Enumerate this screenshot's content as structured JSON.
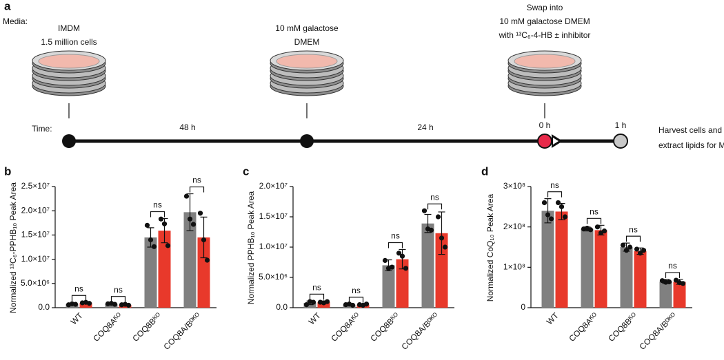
{
  "panel_a": {
    "label": "a",
    "media_label": "Media:",
    "time_label": "Time:",
    "stages": [
      {
        "media": [
          "IMDM",
          "1.5 million cells"
        ]
      },
      {
        "media": [
          "10 mM galactose",
          "DMEM"
        ]
      },
      {
        "media": [
          "Swap into",
          "10 mM galactose DMEM",
          "with ¹³C₆-4-HB ± inhibitor"
        ]
      }
    ],
    "intervals": [
      "48 h",
      "24 h"
    ],
    "time_points": [
      "0 h",
      "1 h"
    ],
    "end_note": [
      "Harvest cells and",
      "extract lipids for MS"
    ]
  },
  "chart_data": [
    {
      "type": "bar",
      "panel": "b",
      "y_label": "Normalized ¹³C₆-PPHB₁₀ Peak Area",
      "categories": [
        "WT",
        "COQ8Aᴷᴼ",
        "COQ8Bᴷᴼ",
        "COQ8A/Bᴰᴷᴼ"
      ],
      "ylim": [
        0,
        25000000.0
      ],
      "yticks": [
        {
          "value": 0,
          "label": "0.0"
        },
        {
          "value": 5000000.0,
          "label": "5.0×10⁶"
        },
        {
          "value": 10000000.0,
          "label": "1.0×10⁷"
        },
        {
          "value": 15000000.0,
          "label": "1.5×10⁷"
        },
        {
          "value": 20000000.0,
          "label": "2.0×10⁷"
        },
        {
          "value": 25000000.0,
          "label": "2.5×10⁷"
        }
      ],
      "series": [
        {
          "color": "#808080",
          "values": [
            700000.0,
            800000.0,
            14500000.0,
            19700000.0
          ],
          "errors": [
            100000.0,
            100000.0,
            2000000.0,
            3800000.0
          ],
          "points": [
            [
              600000.0,
              800000.0,
              700000.0
            ],
            [
              800000.0,
              900000.0,
              700000.0
            ],
            [
              17000000.0,
              14000000.0,
              12600000.0
            ],
            [
              23000000.0,
              18300000.0,
              17200000.0
            ]
          ]
        },
        {
          "color": "#e8392b",
          "values": [
            1000000.0,
            600000.0,
            15900000.0,
            14500000.0
          ],
          "errors": [
            100000.0,
            100000.0,
            2500000.0,
            4200000.0
          ],
          "points": [
            [
              1000000.0,
              1100000.0,
              900000.0
            ],
            [
              600000.0,
              700000.0,
              500000.0
            ],
            [
              18300000.0,
              17300000.0,
              12800000.0
            ],
            [
              19500000.0,
              14000000.0,
              9800000.0
            ]
          ]
        }
      ],
      "annotations": [
        "ns",
        "ns",
        "ns",
        "ns"
      ]
    },
    {
      "type": "bar",
      "panel": "c",
      "y_label": "Normalized PPHB₁₀ Peak Area",
      "categories": [
        "WT",
        "COQ8Aᴷᴼ",
        "COQ8Bᴷᴼ",
        "COQ8A/Bᴰᴷᴼ"
      ],
      "ylim": [
        0,
        20000000.0
      ],
      "yticks": [
        {
          "value": 0,
          "label": "0.0"
        },
        {
          "value": 5000000.0,
          "label": "5.0×10⁶"
        },
        {
          "value": 10000000.0,
          "label": "1.0×10⁷"
        },
        {
          "value": 15000000.0,
          "label": "1.5×10⁷"
        },
        {
          "value": 20000000.0,
          "label": "2.0×10⁷"
        }
      ],
      "series": [
        {
          "color": "#808080",
          "values": [
            800000.0,
            500000.0,
            7000000.0,
            13900000.0
          ],
          "errors": [
            300000.0,
            100000.0,
            900000.0,
            1500000.0
          ],
          "points": [
            [
              500000.0,
              1000000.0,
              900000.0
            ],
            [
              500000.0,
              600000.0,
              400000.0
            ],
            [
              7800000.0,
              6500000.0,
              6700000.0
            ],
            [
              16000000.0,
              13000000.0,
              12800000.0
            ]
          ]
        },
        {
          "color": "#e8392b",
          "values": [
            900000.0,
            500000.0,
            8000000.0,
            12300000.0
          ],
          "errors": [
            200000.0,
            100000.0,
            1600000.0,
            3500000.0
          ],
          "points": [
            [
              900000.0,
              800000.0,
              1000000.0
            ],
            [
              500000.0,
              400000.0,
              600000.0
            ],
            [
              9000000.0,
              8500000.0,
              6500000.0
            ],
            [
              15000000.0,
              11500000.0,
              10000000.0
            ]
          ]
        }
      ],
      "annotations": [
        "ns",
        "ns",
        "ns",
        "ns"
      ]
    },
    {
      "type": "bar",
      "panel": "d",
      "y_label": "Normalized CoQ₁₀ Peak Area",
      "categories": [
        "WT",
        "COQ8Aᴷᴼ",
        "COQ8Bᴷᴼ",
        "COQ8A/Bᴰᴷᴼ"
      ],
      "ylim": [
        0,
        300000000.0
      ],
      "yticks": [
        0,
        {
          "value": 100000000.0,
          "label": "1×10⁸"
        },
        {
          "value": 200000000.0,
          "label": "2×10⁸"
        },
        {
          "value": 300000000.0,
          "label": "3×10⁸"
        }
      ],
      "series": [
        {
          "color": "#808080",
          "values": [
            240000000.0,
            195000000.0,
            150000000.0,
            65000000.0
          ],
          "errors": [
            30000000.0,
            5000000.0,
            10000000.0,
            5000000.0
          ],
          "points": [
            [
              260000000.0,
              230000000.0,
              220000000.0
            ],
            [
              195000000.0,
              197000000.0,
              193000000.0
            ],
            [
              155000000.0,
              142000000.0,
              150000000.0
            ],
            [
              67000000.0,
              63000000.0,
              64000000.0
            ]
          ]
        },
        {
          "color": "#e8392b",
          "values": [
            238000000.0,
            192000000.0,
            140000000.0,
            64000000.0
          ],
          "errors": [
            20000000.0,
            12000000.0,
            8000000.0,
            6000000.0
          ],
          "points": [
            [
              260000000.0,
              250000000.0,
              225000000.0
            ],
            [
              200000000.0,
              185000000.0,
              190000000.0
            ],
            [
              145000000.0,
              135000000.0,
              142000000.0
            ],
            [
              68000000.0,
              62000000.0,
              60000000.0
            ]
          ]
        }
      ],
      "annotations": [
        "ns",
        "ns",
        "ns",
        "ns"
      ]
    }
  ]
}
